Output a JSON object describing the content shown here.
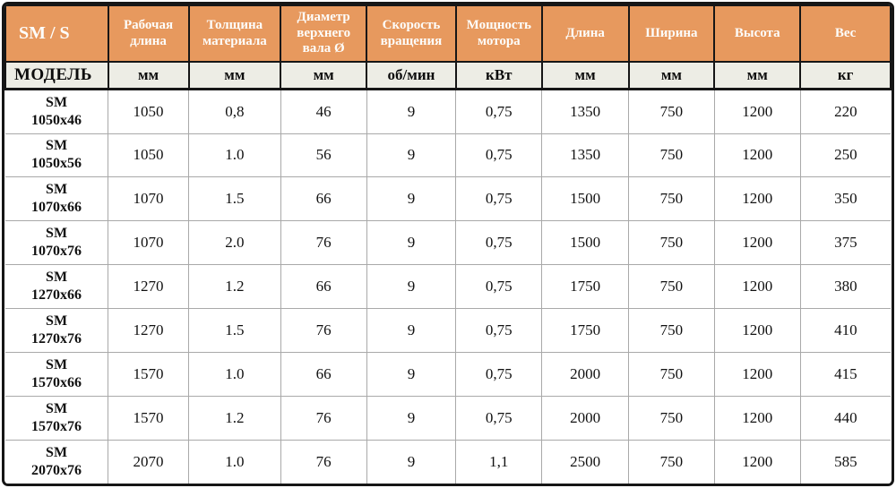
{
  "table": {
    "columns": [
      {
        "label": "SM / S",
        "unit": "МОДЕЛЬ"
      },
      {
        "label": "Рабочая длина",
        "unit": "мм"
      },
      {
        "label": "Толщина материала",
        "unit": "мм"
      },
      {
        "label": "Диаметр верхнего вала Ø",
        "unit": "мм"
      },
      {
        "label": "Скорость вращения",
        "unit": "об/мин"
      },
      {
        "label": "Мощность мотора",
        "unit": "кВт"
      },
      {
        "label": "Длина",
        "unit": "мм"
      },
      {
        "label": "Ширина",
        "unit": "мм"
      },
      {
        "label": "Высота",
        "unit": "мм"
      },
      {
        "label": "Вес",
        "unit": "кг"
      }
    ],
    "rows": [
      {
        "model": "SM 1050x46",
        "values": [
          "1050",
          "0,8",
          "46",
          "9",
          "0,75",
          "1350",
          "750",
          "1200",
          "220"
        ]
      },
      {
        "model": "SM 1050x56",
        "values": [
          "1050",
          "1.0",
          "56",
          "9",
          "0,75",
          "1350",
          "750",
          "1200",
          "250"
        ]
      },
      {
        "model": "SM 1070x66",
        "values": [
          "1070",
          "1.5",
          "66",
          "9",
          "0,75",
          "1500",
          "750",
          "1200",
          "350"
        ]
      },
      {
        "model": "SM 1070x76",
        "values": [
          "1070",
          "2.0",
          "76",
          "9",
          "0,75",
          "1500",
          "750",
          "1200",
          "375"
        ]
      },
      {
        "model": "SM 1270x66",
        "values": [
          "1270",
          "1.2",
          "66",
          "9",
          "0,75",
          "1750",
          "750",
          "1200",
          "380"
        ]
      },
      {
        "model": "SM 1270x76",
        "values": [
          "1270",
          "1.5",
          "76",
          "9",
          "0,75",
          "1750",
          "750",
          "1200",
          "410"
        ]
      },
      {
        "model": "SM 1570x66",
        "values": [
          "1570",
          "1.0",
          "66",
          "9",
          "0,75",
          "2000",
          "750",
          "1200",
          "415"
        ]
      },
      {
        "model": "SM 1570x76",
        "values": [
          "1570",
          "1.2",
          "76",
          "9",
          "0,75",
          "2000",
          "750",
          "1200",
          "440"
        ]
      },
      {
        "model": "SM 2070x76",
        "values": [
          "2070",
          "1.0",
          "76",
          "9",
          "1,1",
          "2500",
          "750",
          "1200",
          "585"
        ]
      }
    ]
  },
  "colors": {
    "header_bg": "#e7995e",
    "header_text": "#fdfdfb",
    "unit_row_bg": "#edede5",
    "body_text": "#111111",
    "grid_line": "#a9a9a9",
    "frame": "#161616"
  }
}
